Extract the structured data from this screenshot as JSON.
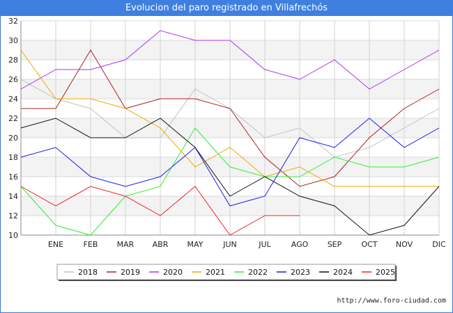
{
  "title": "Evolucion del paro registrado en Villafrechós",
  "footer": "http://www.foro-ciudad.com",
  "chart_data": {
    "type": "line",
    "title": "Evolucion del paro registrado en Villafrechós",
    "categories": [
      "",
      "ENE",
      "FEB",
      "MAR",
      "ABR",
      "MAY",
      "JUN",
      "JUL",
      "AGO",
      "SEP",
      "OCT",
      "NOV",
      "DIC"
    ],
    "ylim": [
      10,
      32
    ],
    "yticks": [
      10,
      12,
      14,
      16,
      18,
      20,
      22,
      24,
      26,
      28,
      30,
      32
    ],
    "grid": true,
    "legend_position": "bottom",
    "series": [
      {
        "name": "2018",
        "color": "#c0c0c0",
        "values": [
          26,
          24,
          23,
          20,
          20,
          25,
          23,
          20,
          21,
          18,
          19,
          21,
          23
        ]
      },
      {
        "name": "2019",
        "color": "#aa2222",
        "values": [
          23,
          23,
          29,
          23,
          24,
          24,
          23,
          18,
          15,
          16,
          20,
          23,
          25
        ]
      },
      {
        "name": "2020",
        "color": "#aa33ee",
        "values": [
          25,
          27,
          27,
          28,
          31,
          30,
          30,
          27,
          26,
          28,
          25,
          27,
          29
        ]
      },
      {
        "name": "2021",
        "color": "#f0a800",
        "values": [
          29,
          24,
          24,
          23,
          21,
          17,
          19,
          16,
          17,
          15,
          15,
          15,
          15
        ]
      },
      {
        "name": "2022",
        "color": "#33ee33",
        "values": [
          15,
          11,
          10,
          14,
          15,
          21,
          17,
          16,
          16,
          18,
          17,
          17,
          18
        ]
      },
      {
        "name": "2023",
        "color": "#1a1aee",
        "values": [
          18,
          19,
          16,
          15,
          16,
          19,
          13,
          14,
          20,
          19,
          22,
          19,
          21
        ]
      },
      {
        "name": "2024",
        "color": "#111111",
        "values": [
          21,
          22,
          20,
          20,
          22,
          19,
          14,
          16,
          14,
          13,
          10,
          11,
          15
        ]
      },
      {
        "name": "2025",
        "color": "#ee2222",
        "values": [
          15,
          13,
          15,
          14,
          12,
          15,
          10,
          12,
          12,
          null,
          null,
          null,
          null
        ]
      }
    ]
  }
}
